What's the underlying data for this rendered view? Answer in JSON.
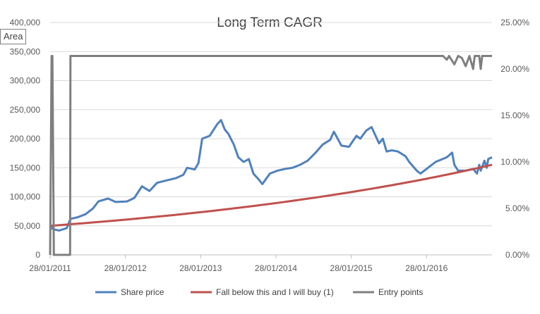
{
  "tooltip": "Area",
  "chart_data": {
    "type": "line",
    "title": "Long Term CAGR",
    "x_tick_labels": [
      "28/01/2011",
      "28/01/2012",
      "28/01/2013",
      "28/01/2014",
      "28/01/2015",
      "28/01/2016"
    ],
    "x_range_years": [
      2011.08,
      2016.95
    ],
    "y_left": {
      "min": 0,
      "max": 400000,
      "step": 50000,
      "tick_labels": [
        "0",
        "50,000",
        "100,000",
        "150,000",
        "200,000",
        "250,000",
        "300,000",
        "350,000",
        "400,000"
      ]
    },
    "y_right": {
      "min": 0,
      "max": 0.25,
      "step": 0.05,
      "tick_labels": [
        "0.00%",
        "5.00%",
        "10.00%",
        "15.00%",
        "20.00%",
        "25.00%"
      ]
    },
    "legend_position": "bottom",
    "series": [
      {
        "name": "Share price",
        "axis": "left",
        "color": "#4f81bd",
        "points": [
          [
            2011.08,
            50000
          ],
          [
            2011.12,
            44000
          ],
          [
            2011.2,
            42000
          ],
          [
            2011.3,
            46000
          ],
          [
            2011.35,
            62000
          ],
          [
            2011.45,
            65000
          ],
          [
            2011.55,
            70000
          ],
          [
            2011.65,
            80000
          ],
          [
            2011.72,
            92000
          ],
          [
            2011.85,
            97000
          ],
          [
            2011.95,
            91000
          ],
          [
            2012.1,
            92000
          ],
          [
            2012.2,
            98000
          ],
          [
            2012.3,
            118000
          ],
          [
            2012.4,
            110000
          ],
          [
            2012.5,
            124000
          ],
          [
            2012.62,
            128000
          ],
          [
            2012.75,
            132000
          ],
          [
            2012.85,
            138000
          ],
          [
            2012.9,
            150000
          ],
          [
            2013.0,
            147000
          ],
          [
            2013.05,
            158000
          ],
          [
            2013.1,
            200000
          ],
          [
            2013.2,
            205000
          ],
          [
            2013.3,
            225000
          ],
          [
            2013.35,
            232000
          ],
          [
            2013.4,
            216000
          ],
          [
            2013.45,
            208000
          ],
          [
            2013.52,
            190000
          ],
          [
            2013.58,
            168000
          ],
          [
            2013.65,
            160000
          ],
          [
            2013.72,
            165000
          ],
          [
            2013.78,
            140000
          ],
          [
            2013.85,
            130000
          ],
          [
            2013.9,
            122000
          ],
          [
            2014.0,
            140000
          ],
          [
            2014.1,
            145000
          ],
          [
            2014.2,
            148000
          ],
          [
            2014.3,
            150000
          ],
          [
            2014.4,
            155000
          ],
          [
            2014.5,
            162000
          ],
          [
            2014.6,
            175000
          ],
          [
            2014.7,
            190000
          ],
          [
            2014.8,
            198000
          ],
          [
            2014.85,
            212000
          ],
          [
            2014.9,
            200000
          ],
          [
            2014.95,
            188000
          ],
          [
            2015.05,
            186000
          ],
          [
            2015.15,
            205000
          ],
          [
            2015.2,
            200000
          ],
          [
            2015.28,
            214000
          ],
          [
            2015.35,
            220000
          ],
          [
            2015.45,
            192000
          ],
          [
            2015.5,
            200000
          ],
          [
            2015.55,
            178000
          ],
          [
            2015.62,
            180000
          ],
          [
            2015.7,
            178000
          ],
          [
            2015.8,
            170000
          ],
          [
            2015.85,
            160000
          ],
          [
            2015.95,
            145000
          ],
          [
            2016.0,
            140000
          ],
          [
            2016.1,
            150000
          ],
          [
            2016.2,
            160000
          ],
          [
            2016.35,
            168000
          ],
          [
            2016.42,
            176000
          ],
          [
            2016.45,
            155000
          ],
          [
            2016.5,
            145000
          ],
          [
            2016.6,
            145000
          ],
          [
            2016.7,
            148000
          ],
          [
            2016.75,
            140000
          ],
          [
            2016.78,
            155000
          ],
          [
            2016.8,
            145000
          ],
          [
            2016.85,
            162000
          ],
          [
            2016.88,
            150000
          ],
          [
            2016.9,
            165000
          ],
          [
            2016.95,
            168000
          ]
        ]
      },
      {
        "name": "Fall below this and I will buy (1)",
        "axis": "left",
        "color": "#c0504d",
        "start": {
          "x": 2011.08,
          "y": 50000
        },
        "end": {
          "x": 2016.95,
          "y": 155000
        }
      },
      {
        "name": "Entry points",
        "axis": "right",
        "color": "#7f7f7f",
        "points": [
          [
            2011.08,
            0
          ],
          [
            2011.1,
            0.214
          ],
          [
            2011.11,
            0.214
          ],
          [
            2011.13,
            0
          ],
          [
            2011.345,
            0
          ],
          [
            2011.35,
            0.214
          ],
          [
            2016.3,
            0.214
          ],
          [
            2016.35,
            0.21
          ],
          [
            2016.38,
            0.214
          ],
          [
            2016.45,
            0.205
          ],
          [
            2016.5,
            0.214
          ],
          [
            2016.55,
            0.212
          ],
          [
            2016.6,
            0.203
          ],
          [
            2016.65,
            0.214
          ],
          [
            2016.7,
            0.2
          ],
          [
            2016.72,
            0.214
          ],
          [
            2016.78,
            0.214
          ],
          [
            2016.8,
            0.2
          ],
          [
            2016.82,
            0.214
          ],
          [
            2016.95,
            0.214
          ]
        ]
      }
    ]
  }
}
